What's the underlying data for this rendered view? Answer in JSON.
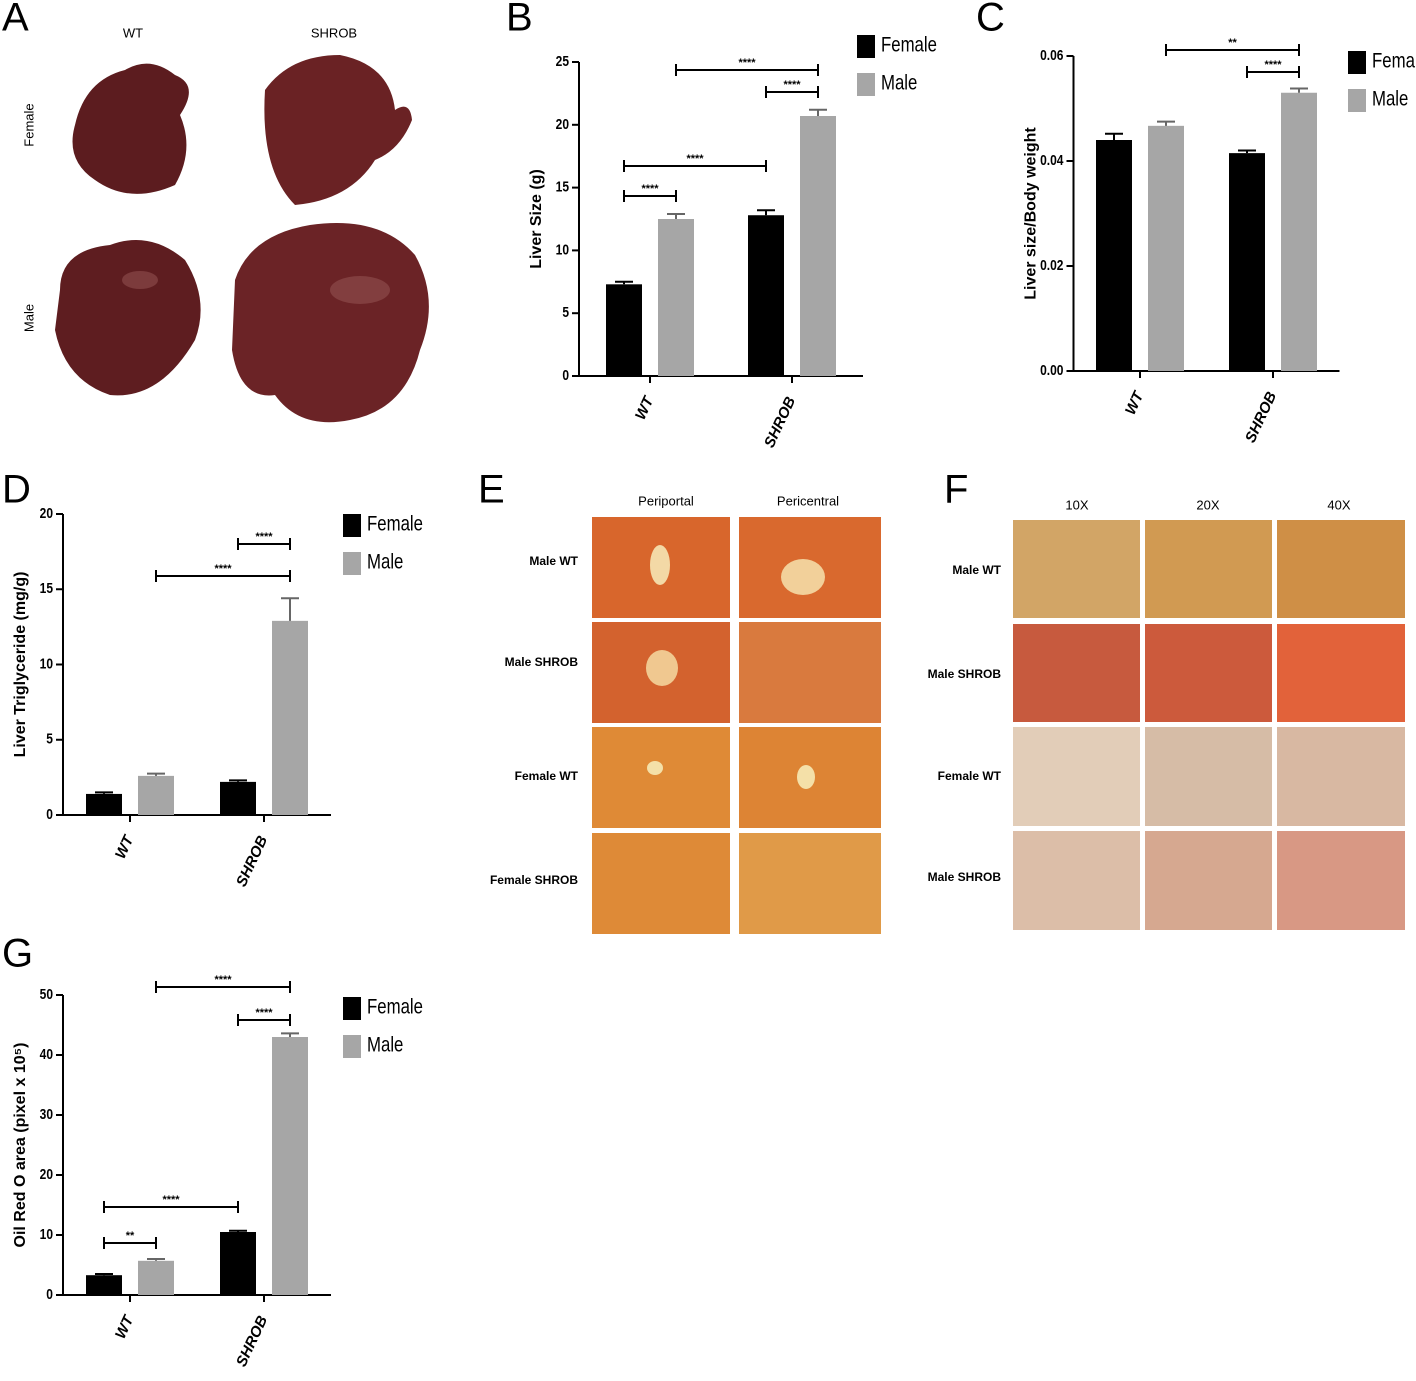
{
  "panel_a": {
    "letter": "A",
    "columns": [
      "WT",
      "SHROB"
    ],
    "rows": [
      "Female",
      "Male"
    ]
  },
  "panel_e": {
    "letter": "E",
    "columns": [
      "Periportal",
      "Pericentral"
    ],
    "rows": [
      "Male WT",
      "Male SHROB",
      "Female WT",
      "Female SHROB"
    ]
  },
  "panel_f": {
    "letter": "F",
    "columns": [
      "10X",
      "20X",
      "40X"
    ],
    "rows": [
      "Male WT",
      "Male SHROB",
      "Female WT",
      "Male SHROB"
    ]
  },
  "chart_data": [
    {
      "type": "bar",
      "panel": "B",
      "ylabel": "Liver Size (g)",
      "categories": [
        "WT",
        "SHROB"
      ],
      "series": [
        {
          "name": "Female",
          "color": "#000000",
          "values": [
            7.3,
            12.8
          ],
          "errors": [
            0.2,
            0.4
          ]
        },
        {
          "name": "Male",
          "color": "#a6a6a6",
          "values": [
            12.5,
            20.7
          ],
          "errors": [
            0.4,
            0.5
          ]
        }
      ],
      "ylim": [
        0,
        25
      ],
      "yticks": [
        0,
        5,
        10,
        15,
        20,
        25
      ],
      "annotations": [
        "****",
        "****",
        "****",
        "****"
      ]
    },
    {
      "type": "bar",
      "panel": "C",
      "ylabel": "Liver size/Body weight",
      "categories": [
        "WT",
        "SHROB"
      ],
      "series": [
        {
          "name": "Female",
          "color": "#000000",
          "values": [
            0.044,
            0.0415
          ],
          "errors": [
            0.0012,
            0.0005
          ]
        },
        {
          "name": "Male",
          "color": "#a6a6a6",
          "values": [
            0.0467,
            0.053
          ],
          "errors": [
            0.0008,
            0.0008
          ]
        }
      ],
      "ylim": [
        0,
        0.06
      ],
      "yticks": [
        {
          "value": 0,
          "label": "0.00"
        },
        {
          "value": 0.02,
          "label": "0.02"
        },
        {
          "value": 0.04,
          "label": "0.04"
        },
        {
          "value": 0.06,
          "label": "0.06"
        }
      ],
      "annotations": [
        "**",
        "****"
      ]
    },
    {
      "type": "bar",
      "panel": "D",
      "ylabel": "Liver Triglyceride (mg/g)",
      "categories": [
        "WT",
        "SHROB"
      ],
      "series": [
        {
          "name": "Female",
          "color": "#000000",
          "values": [
            1.4,
            2.2
          ],
          "errors": [
            0.1,
            0.1
          ]
        },
        {
          "name": "Male",
          "color": "#a6a6a6",
          "values": [
            2.6,
            12.9
          ],
          "errors": [
            0.15,
            1.5
          ]
        }
      ],
      "ylim": [
        0,
        20
      ],
      "yticks": [
        0,
        5,
        10,
        15,
        20
      ],
      "annotations": [
        "****",
        "****"
      ]
    },
    {
      "type": "bar",
      "panel": "G",
      "ylabel": "Oil Red O area (pixel x 10⁵)",
      "categories": [
        "WT",
        "SHROB"
      ],
      "series": [
        {
          "name": "Female",
          "color": "#000000",
          "values": [
            3.3,
            10.5
          ],
          "errors": [
            0.2,
            0.2
          ]
        },
        {
          "name": "Male",
          "color": "#a6a6a6",
          "values": [
            5.7,
            43.0
          ],
          "errors": [
            0.3,
            0.6
          ]
        }
      ],
      "ylim": [
        0,
        50
      ],
      "yticks": [
        0,
        10,
        20,
        30,
        40,
        50
      ],
      "annotations": [
        "**",
        "****",
        "****",
        "****"
      ]
    }
  ]
}
